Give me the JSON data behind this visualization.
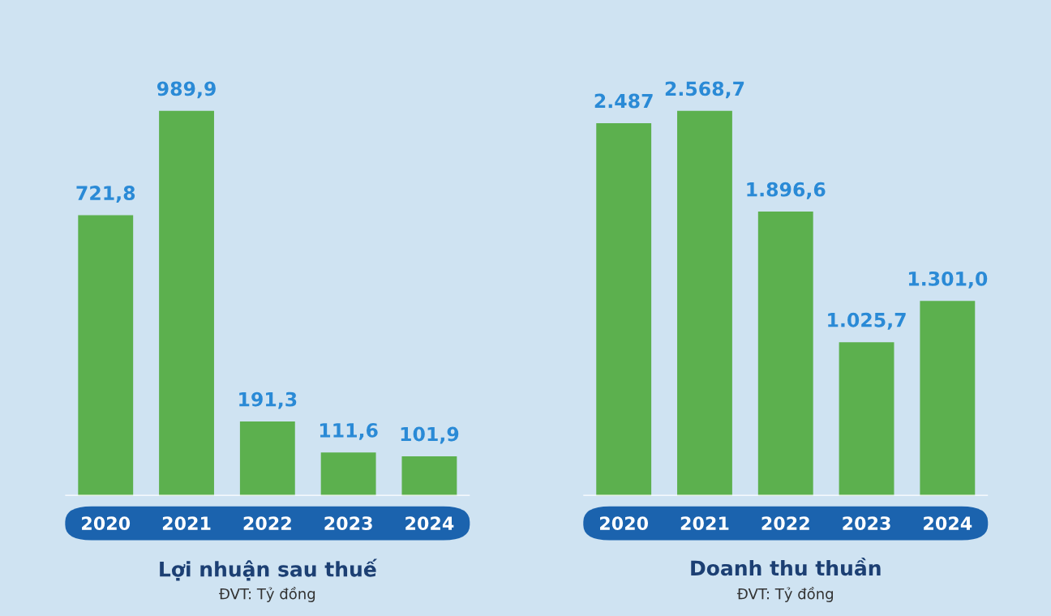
{
  "chart_data": [
    {
      "type": "bar",
      "title": "Lợi nhuận sau thuế",
      "subtitle": "ĐVT: Tỷ đồng",
      "categories": [
        "2020",
        "2021",
        "2022",
        "2023",
        "2024"
      ],
      "values": [
        721.8,
        989.9,
        191.3,
        111.6,
        101.9
      ],
      "value_labels": [
        "721,8",
        "989,9",
        "191,3",
        "111,6",
        "101,9"
      ],
      "color": "#5cb04e"
    },
    {
      "type": "bar",
      "title": "Doanh thu thuần",
      "subtitle": "ĐVT: Tỷ đồng",
      "categories": [
        "2020",
        "2021",
        "2022",
        "2023",
        "2024"
      ],
      "values": [
        2487,
        2568.7,
        1896.6,
        1025.7,
        1301.0
      ],
      "value_labels": [
        "2.487",
        "2.568,7",
        "1.896,6",
        "1.025,7",
        "1.301,0"
      ],
      "color": "#5cb04e"
    }
  ]
}
